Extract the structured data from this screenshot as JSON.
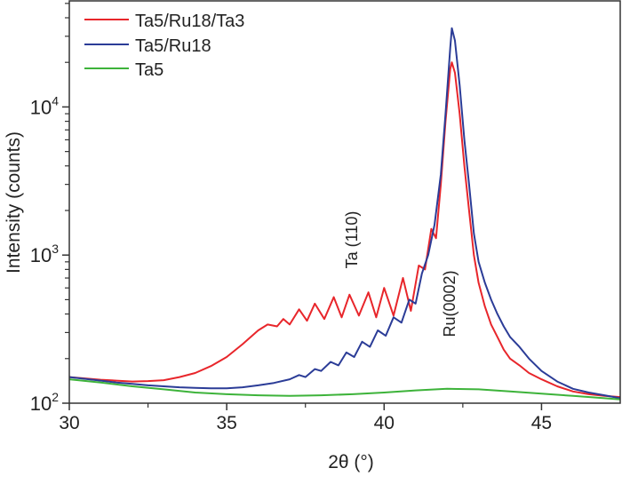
{
  "chart_data": {
    "type": "line",
    "xlabel": "2θ (°)",
    "ylabel": "Intensity (counts)",
    "xlim": [
      30,
      47.5
    ],
    "ylim": [
      100,
      52000
    ],
    "yscale": "log",
    "xticks": [
      30,
      35,
      40,
      45
    ],
    "yticks": [
      {
        "value": 100,
        "base": "10",
        "exp": "2"
      },
      {
        "value": 1000,
        "base": "10",
        "exp": "3"
      },
      {
        "value": 10000,
        "base": "10",
        "exp": "4"
      }
    ],
    "grid": false,
    "legend": "top-left",
    "annotations": [
      {
        "text": "Ta (110)",
        "x": 38.7,
        "y": 900,
        "rotation": -90
      },
      {
        "text": "Ru(0002)",
        "x": 41.9,
        "y": 420,
        "rotation": -90
      }
    ],
    "series": [
      {
        "name": "Ta5/Ru18/Ta3",
        "color": "#e8262b",
        "points": [
          [
            30,
            150
          ],
          [
            30.5,
            147
          ],
          [
            31,
            144
          ],
          [
            31.5,
            142
          ],
          [
            32,
            140
          ],
          [
            32.5,
            141
          ],
          [
            33,
            143
          ],
          [
            33.5,
            150
          ],
          [
            34,
            160
          ],
          [
            34.5,
            178
          ],
          [
            35,
            205
          ],
          [
            35.5,
            250
          ],
          [
            36,
            310
          ],
          [
            36.3,
            340
          ],
          [
            36.6,
            330
          ],
          [
            36.8,
            370
          ],
          [
            37.0,
            340
          ],
          [
            37.3,
            430
          ],
          [
            37.55,
            360
          ],
          [
            37.8,
            470
          ],
          [
            38.1,
            370
          ],
          [
            38.4,
            520
          ],
          [
            38.65,
            380
          ],
          [
            38.9,
            540
          ],
          [
            39.2,
            390
          ],
          [
            39.5,
            560
          ],
          [
            39.75,
            380
          ],
          [
            40.0,
            600
          ],
          [
            40.3,
            390
          ],
          [
            40.6,
            700
          ],
          [
            40.85,
            420
          ],
          [
            41.1,
            850
          ],
          [
            41.3,
            800
          ],
          [
            41.5,
            1500
          ],
          [
            41.65,
            1300
          ],
          [
            41.8,
            3000
          ],
          [
            41.95,
            8000
          ],
          [
            42.1,
            18000
          ],
          [
            42.15,
            20000
          ],
          [
            42.25,
            17000
          ],
          [
            42.4,
            9000
          ],
          [
            42.55,
            4000
          ],
          [
            42.7,
            2000
          ],
          [
            42.85,
            1000
          ],
          [
            43.0,
            650
          ],
          [
            43.2,
            450
          ],
          [
            43.4,
            340
          ],
          [
            43.6,
            280
          ],
          [
            43.8,
            230
          ],
          [
            44.0,
            200
          ],
          [
            44.3,
            180
          ],
          [
            44.6,
            160
          ],
          [
            45.0,
            145
          ],
          [
            45.5,
            130
          ],
          [
            46,
            120
          ],
          [
            46.5,
            115
          ],
          [
            47,
            112
          ],
          [
            47.5,
            110
          ]
        ]
      },
      {
        "name": "Ta5/Ru18",
        "color": "#2b3c97",
        "points": [
          [
            30,
            150
          ],
          [
            30.5,
            146
          ],
          [
            31,
            142
          ],
          [
            31.5,
            138
          ],
          [
            32,
            135
          ],
          [
            32.5,
            132
          ],
          [
            33,
            130
          ],
          [
            33.5,
            128
          ],
          [
            34,
            127
          ],
          [
            34.5,
            126
          ],
          [
            35,
            126
          ],
          [
            35.5,
            128
          ],
          [
            36,
            132
          ],
          [
            36.5,
            137
          ],
          [
            37,
            145
          ],
          [
            37.3,
            155
          ],
          [
            37.5,
            150
          ],
          [
            37.8,
            170
          ],
          [
            38.0,
            165
          ],
          [
            38.3,
            190
          ],
          [
            38.55,
            180
          ],
          [
            38.8,
            220
          ],
          [
            39.05,
            205
          ],
          [
            39.3,
            260
          ],
          [
            39.55,
            240
          ],
          [
            39.8,
            310
          ],
          [
            40.05,
            285
          ],
          [
            40.3,
            380
          ],
          [
            40.55,
            350
          ],
          [
            40.8,
            500
          ],
          [
            41.0,
            470
          ],
          [
            41.2,
            750
          ],
          [
            41.4,
            1000
          ],
          [
            41.6,
            1600
          ],
          [
            41.8,
            3500
          ],
          [
            41.95,
            9000
          ],
          [
            42.1,
            25000
          ],
          [
            42.15,
            34000
          ],
          [
            42.25,
            28000
          ],
          [
            42.4,
            14000
          ],
          [
            42.55,
            6000
          ],
          [
            42.7,
            3000
          ],
          [
            42.85,
            1400
          ],
          [
            43.0,
            900
          ],
          [
            43.2,
            650
          ],
          [
            43.4,
            500
          ],
          [
            43.6,
            400
          ],
          [
            43.8,
            330
          ],
          [
            44.0,
            280
          ],
          [
            44.3,
            240
          ],
          [
            44.6,
            200
          ],
          [
            45.0,
            165
          ],
          [
            45.5,
            140
          ],
          [
            46,
            125
          ],
          [
            46.5,
            118
          ],
          [
            47,
            113
          ],
          [
            47.5,
            108
          ]
        ]
      },
      {
        "name": "Ta5",
        "color": "#3db33a",
        "points": [
          [
            30,
            145
          ],
          [
            31,
            138
          ],
          [
            32,
            130
          ],
          [
            33,
            124
          ],
          [
            34,
            118
          ],
          [
            35,
            115
          ],
          [
            36,
            113
          ],
          [
            37,
            112
          ],
          [
            38,
            113
          ],
          [
            39,
            115
          ],
          [
            40,
            118
          ],
          [
            41,
            122
          ],
          [
            42,
            125
          ],
          [
            43,
            124
          ],
          [
            44,
            120
          ],
          [
            45,
            116
          ],
          [
            46,
            112
          ],
          [
            47,
            108
          ],
          [
            47.5,
            106
          ]
        ]
      }
    ]
  }
}
